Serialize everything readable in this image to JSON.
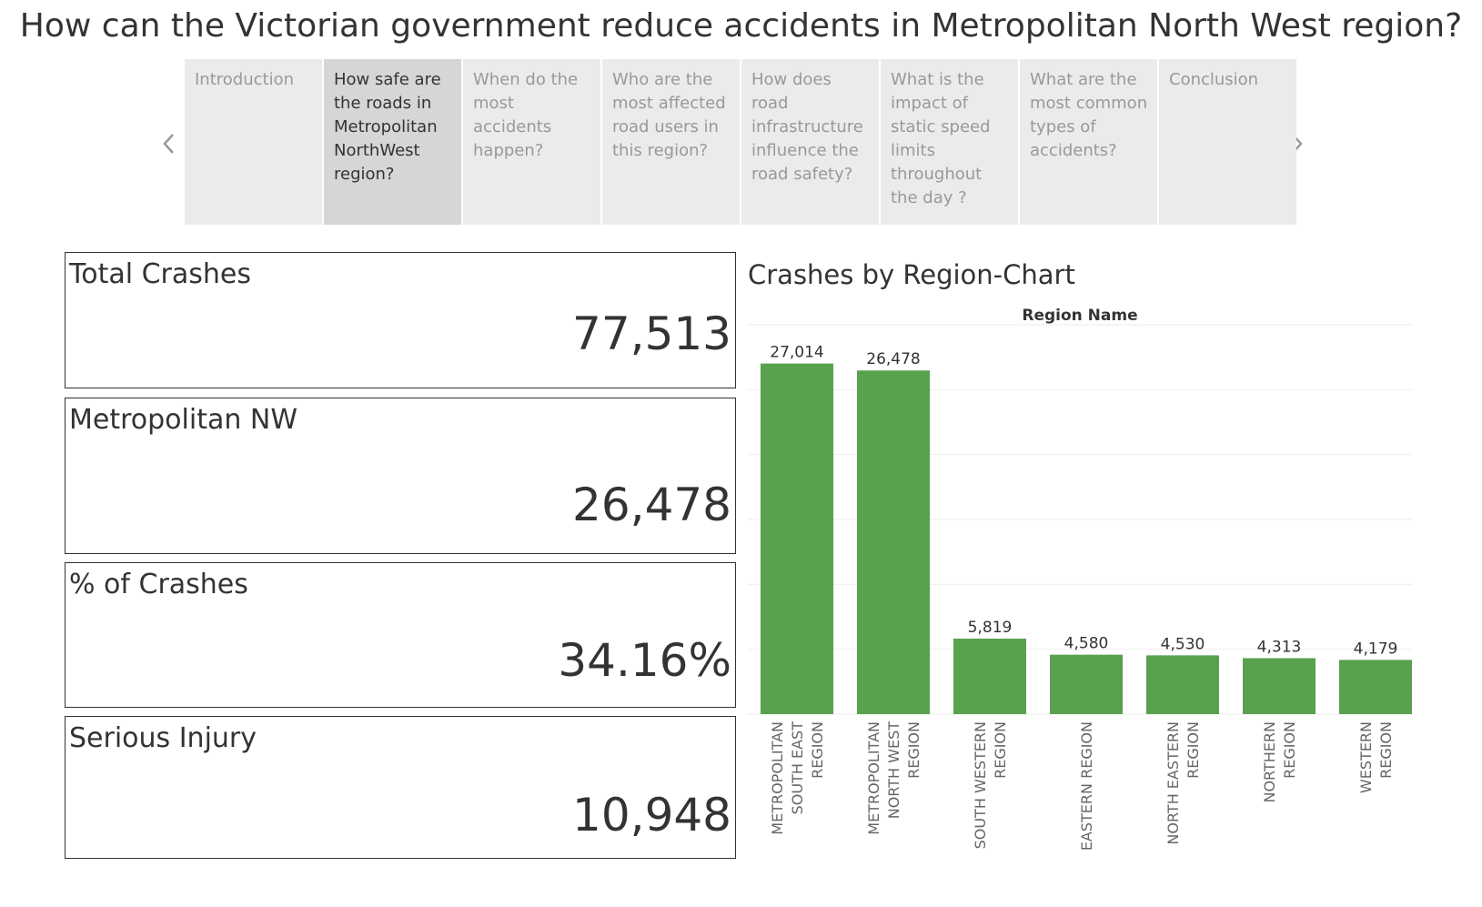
{
  "page": {
    "title": "How can the Victorian government reduce accidents in Metropolitan North West region?"
  },
  "story": {
    "prev_icon": "chevron-left-icon",
    "next_icon": "chevron-right-icon",
    "points": [
      {
        "label": "Introduction",
        "active": false
      },
      {
        "label": "How safe are the roads in Metropolitan NorthWest region?",
        "active": true
      },
      {
        "label": "When do the most accidents happen?",
        "active": false
      },
      {
        "label": "Who are the most affected road users in this region?",
        "active": false
      },
      {
        "label": "How does road infrastructure influence the road safety?",
        "active": false
      },
      {
        "label": "What is the impact of static speed limits throughout the day ?",
        "active": false
      },
      {
        "label": "What are the most common types of accidents?",
        "active": false
      },
      {
        "label": "Conclusion",
        "active": false
      }
    ]
  },
  "kpis": {
    "total": {
      "label": "Total Crashes",
      "value": "77,513"
    },
    "region": {
      "label": "Metropolitan NW",
      "value": "26,478"
    },
    "percent": {
      "label": "% of Crashes",
      "value": "34.16%"
    },
    "serious": {
      "label": "Serious Injury",
      "value": "10,948"
    }
  },
  "chart_data": {
    "type": "bar",
    "title": "Crashes by Region-Chart",
    "header": "Region Name",
    "categories": [
      [
        "METROPOLITAN",
        "SOUTH EAST",
        "REGION"
      ],
      [
        "METROPOLITAN",
        "NORTH WEST",
        "REGION"
      ],
      [
        "SOUTH WESTERN",
        "REGION"
      ],
      [
        "EASTERN REGION"
      ],
      [
        "NORTH EASTERN",
        "REGION"
      ],
      [
        "NORTHERN",
        "REGION"
      ],
      [
        "WESTERN",
        "REGION"
      ]
    ],
    "values": [
      27014,
      26478,
      5819,
      4580,
      4530,
      4313,
      4179
    ],
    "value_labels": [
      "27,014",
      "26,478",
      "5,819",
      "4,580",
      "4,530",
      "4,313",
      "4,179"
    ],
    "ylim": [
      0,
      30000
    ],
    "grid": true,
    "bar_color": "#59a14f"
  }
}
